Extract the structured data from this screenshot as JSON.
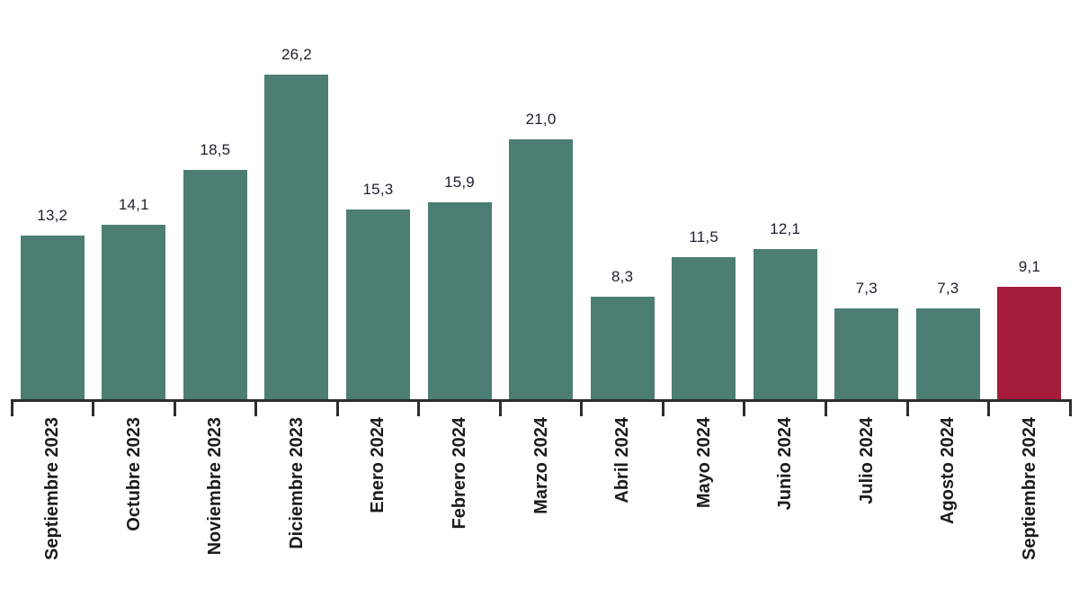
{
  "chart_data": {
    "type": "bar",
    "title": "",
    "xlabel": "",
    "ylabel": "",
    "categories": [
      "Septiembre 2023",
      "Octubre 2023",
      "Noviembre 2023",
      "Diciembre 2023",
      "Enero 2024",
      "Febrero 2024",
      "Marzo 2024",
      "Abril 2024",
      "Mayo 2024",
      "Junio 2024",
      "Julio 2024",
      "Agosto 2024",
      "Septiembre 2024"
    ],
    "values": [
      13.2,
      14.1,
      18.5,
      26.2,
      15.3,
      15.9,
      21.0,
      8.3,
      11.5,
      12.1,
      7.3,
      7.3,
      9.1
    ],
    "value_labels": [
      "13,2",
      "14,1",
      "18,5",
      "26,2",
      "15,3",
      "15,9",
      "21,0",
      "8,3",
      "11,5",
      "12,1",
      "7,3",
      "7,3",
      "9,1"
    ],
    "ylim": [
      0,
      30
    ],
    "grid": false,
    "legend": false,
    "decimal_separator": ",",
    "highlight_index": 12,
    "colors": {
      "bar": "#4c7e74",
      "highlight": "#a51b3a",
      "value_text": "#1f1f2b",
      "label_text": "#1c1c1c",
      "axis": "#2d2d2d",
      "background": "#ffffff"
    }
  }
}
